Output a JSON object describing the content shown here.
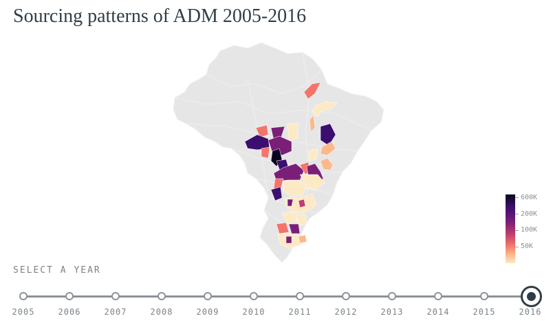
{
  "header": {
    "title": "Sourcing patterns of ADM 2005-2016"
  },
  "map": {
    "base_color": "#e6e6e6",
    "border_color": "#f4f4f4",
    "palette": [
      "#fde9c4",
      "#fcb98b",
      "#f2756b",
      "#c23d6f",
      "#7a1f78",
      "#3b0f6f",
      "#0b0620"
    ]
  },
  "legend": {
    "labels": [
      "600K",
      "200K",
      "100K",
      "50K"
    ]
  },
  "timeline": {
    "label": "SELECT A YEAR",
    "years": [
      "2005",
      "2006",
      "2007",
      "2008",
      "2009",
      "2010",
      "2011",
      "2012",
      "2013",
      "2014",
      "2015",
      "2016"
    ],
    "selected": "2016"
  }
}
